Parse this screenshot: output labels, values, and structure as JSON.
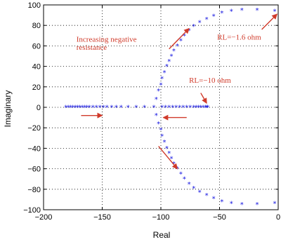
{
  "chart_data": {
    "type": "scatter",
    "xlabel": "Real",
    "ylabel": "Imaginary",
    "xlim": [
      -200,
      0
    ],
    "ylim": [
      -100,
      100
    ],
    "xticks": [
      -200,
      -150,
      -100,
      -50,
      0
    ],
    "yticks": [
      -100,
      -80,
      -60,
      -40,
      -20,
      0,
      20,
      40,
      60,
      80,
      100
    ],
    "xtick_labels": [
      "−200",
      "−150",
      "−100",
      "−50",
      "0"
    ],
    "ytick_labels": [
      "−100",
      "−80",
      "−60",
      "−40",
      "−20",
      "0",
      "20",
      "40",
      "60",
      "80",
      "100"
    ],
    "grid": true,
    "marker": "*",
    "marker_color": "#1010e0",
    "annotation_color": "#d03a2a",
    "series": [
      {
        "points": [
          [
            -181,
            0
          ],
          [
            -179,
            0
          ],
          [
            -177,
            0
          ],
          [
            -175,
            0
          ],
          [
            -173,
            0
          ],
          [
            -171,
            0
          ],
          [
            -169,
            0
          ],
          [
            -167,
            0
          ],
          [
            -165,
            0
          ],
          [
            -163,
            0
          ],
          [
            -161,
            0
          ],
          [
            -158,
            0
          ],
          [
            -155,
            0
          ],
          [
            -152,
            0
          ],
          [
            -149,
            0
          ],
          [
            -146,
            0
          ],
          [
            -142,
            0
          ],
          [
            -138,
            0
          ],
          [
            -134,
            0
          ],
          [
            -128,
            0
          ],
          [
            -121,
            0
          ],
          [
            -114,
            0
          ],
          [
            -106,
            0
          ],
          [
            -99,
            0
          ],
          [
            -96,
            0
          ],
          [
            -93,
            0
          ],
          [
            -90,
            0
          ],
          [
            -87,
            0
          ],
          [
            -84,
            0
          ],
          [
            -81,
            0
          ],
          [
            -78,
            0
          ],
          [
            -75,
            0
          ],
          [
            -72,
            0
          ],
          [
            -70,
            0
          ],
          [
            -68,
            0
          ],
          [
            -66,
            0
          ],
          [
            -64,
            0
          ],
          [
            -62,
            0
          ],
          [
            -61,
            0
          ],
          [
            -60,
            0
          ],
          [
            -104,
            -8
          ],
          [
            -102,
            -16
          ],
          [
            -100,
            -22
          ],
          [
            -99,
            -28
          ],
          [
            -97,
            -34
          ],
          [
            -95,
            -40
          ],
          [
            -93,
            -45
          ],
          [
            -91,
            -50
          ],
          [
            -89,
            -55
          ],
          [
            -86,
            -60
          ],
          [
            -83,
            -65
          ],
          [
            -80,
            -70
          ],
          [
            -76,
            -75
          ],
          [
            -72,
            -79
          ],
          [
            -67,
            -83
          ],
          [
            -61,
            -86
          ],
          [
            -55,
            -89
          ],
          [
            -48,
            -92
          ],
          [
            -40,
            -94
          ],
          [
            -31,
            -95
          ],
          [
            -18,
            -95
          ],
          [
            -3,
            -94
          ],
          [
            -104,
            8
          ],
          [
            -102,
            16
          ],
          [
            -100,
            22
          ],
          [
            -99,
            28
          ],
          [
            -97,
            34
          ],
          [
            -95,
            40
          ],
          [
            -93,
            45
          ],
          [
            -91,
            50
          ],
          [
            -89,
            55
          ],
          [
            -86,
            60
          ],
          [
            -83,
            65
          ],
          [
            -80,
            70
          ],
          [
            -76,
            75
          ],
          [
            -72,
            79
          ],
          [
            -67,
            83
          ],
          [
            -61,
            86
          ],
          [
            -55,
            89
          ],
          [
            -48,
            92
          ],
          [
            -40,
            94
          ],
          [
            -31,
            95
          ],
          [
            -18,
            95
          ],
          [
            -3,
            94
          ]
        ]
      }
    ],
    "annotations": [
      {
        "text": "Increasing negative",
        "x": -172,
        "y": 64
      },
      {
        "text": "resistance",
        "x": -172,
        "y": 56
      },
      {
        "text": "RL=−1.6 ohm",
        "x": -52,
        "y": 66
      },
      {
        "text": "RL=−10 ohm",
        "x": -76,
        "y": 24
      }
    ],
    "arrows": [
      {
        "from": [
          -168,
          -8
        ],
        "to": [
          -150,
          -8
        ]
      },
      {
        "from": [
          -78,
          -10
        ],
        "to": [
          -98,
          -10
        ]
      },
      {
        "from": [
          -93,
          57
        ],
        "to": [
          -76,
          77
        ]
      },
      {
        "from": [
          -102,
          -38
        ],
        "to": [
          -86,
          -60
        ]
      },
      {
        "from": [
          -66,
          14
        ],
        "to": [
          -61,
          4
        ]
      },
      {
        "from": [
          -14,
          76
        ],
        "to": [
          -1,
          91
        ]
      }
    ]
  }
}
